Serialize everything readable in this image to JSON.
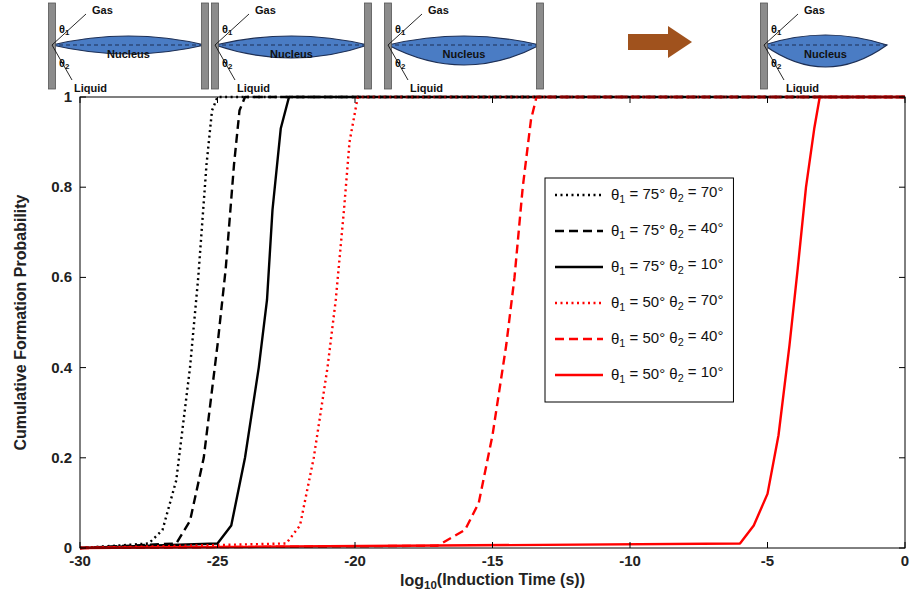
{
  "chart_data": {
    "type": "line",
    "x_label": "log10(Induction Time (s))",
    "y_label": "Cumulative Formation Probability",
    "xlim": [
      -30,
      0
    ],
    "xticks": [
      -30,
      -25,
      -20,
      -15,
      -10,
      -5,
      0
    ],
    "ylim": [
      0,
      1
    ],
    "yticks": [
      0,
      0.2,
      0.4,
      0.6,
      0.8,
      1
    ],
    "grid": false,
    "legend": "upper right",
    "schematic_labels": {
      "gas": "Gas",
      "nucleus": "Nucleus",
      "liquid": "Liquid",
      "theta1": "θ1",
      "theta2": "θ2"
    },
    "series": [
      {
        "name": "θ1 = 75° θ2 = 70°",
        "color": "#000000",
        "line_style": "dotted",
        "x": [
          -30,
          -27.5,
          -27,
          -26.5,
          -26,
          -25.7,
          -25.4,
          -25.2,
          -25,
          0
        ],
        "values": [
          0,
          0.01,
          0.04,
          0.15,
          0.4,
          0.6,
          0.85,
          0.97,
          1,
          1
        ]
      },
      {
        "name": "θ1 = 75° θ2 = 40°",
        "color": "#000000",
        "line_style": "dashed",
        "x": [
          -30,
          -26.5,
          -26,
          -25.5,
          -25,
          -24.7,
          -24.4,
          -24.2,
          -24,
          0
        ],
        "values": [
          0,
          0.01,
          0.06,
          0.2,
          0.45,
          0.62,
          0.85,
          0.97,
          1,
          1
        ]
      },
      {
        "name": "θ1 = 75° θ2 = 10°",
        "color": "#000000",
        "line_style": "solid",
        "x": [
          -30,
          -25,
          -24.5,
          -24,
          -23.5,
          -23.2,
          -23,
          -22.7,
          -22.4,
          0
        ],
        "values": [
          0,
          0.01,
          0.05,
          0.2,
          0.4,
          0.55,
          0.75,
          0.93,
          1,
          1
        ]
      },
      {
        "name": "θ1 = 50° θ2 = 70°",
        "color": "#ff0000",
        "line_style": "dotted",
        "x": [
          -30,
          -22.5,
          -22,
          -21.5,
          -21,
          -20.7,
          -20.4,
          -20.2,
          -19.9,
          0
        ],
        "values": [
          0,
          0.01,
          0.05,
          0.2,
          0.4,
          0.55,
          0.75,
          0.9,
          1,
          1
        ]
      },
      {
        "name": "θ1 = 50° θ2 = 40°",
        "color": "#ff0000",
        "line_style": "dashed",
        "x": [
          -30,
          -17,
          -16,
          -15.5,
          -15,
          -14.5,
          -14.2,
          -13.9,
          -13.6,
          -13.4,
          0
        ],
        "values": [
          0,
          0.005,
          0.04,
          0.1,
          0.25,
          0.45,
          0.6,
          0.8,
          0.95,
          1,
          1
        ]
      },
      {
        "name": "θ1 = 50° θ2 = 10°",
        "color": "#ff0000",
        "line_style": "solid",
        "x": [
          -30,
          -6,
          -5.5,
          -5,
          -4.6,
          -4.2,
          -3.9,
          -3.6,
          -3.3,
          -3.1,
          0
        ],
        "values": [
          0,
          0.01,
          0.05,
          0.12,
          0.25,
          0.45,
          0.62,
          0.8,
          0.93,
          1,
          1
        ]
      }
    ]
  }
}
